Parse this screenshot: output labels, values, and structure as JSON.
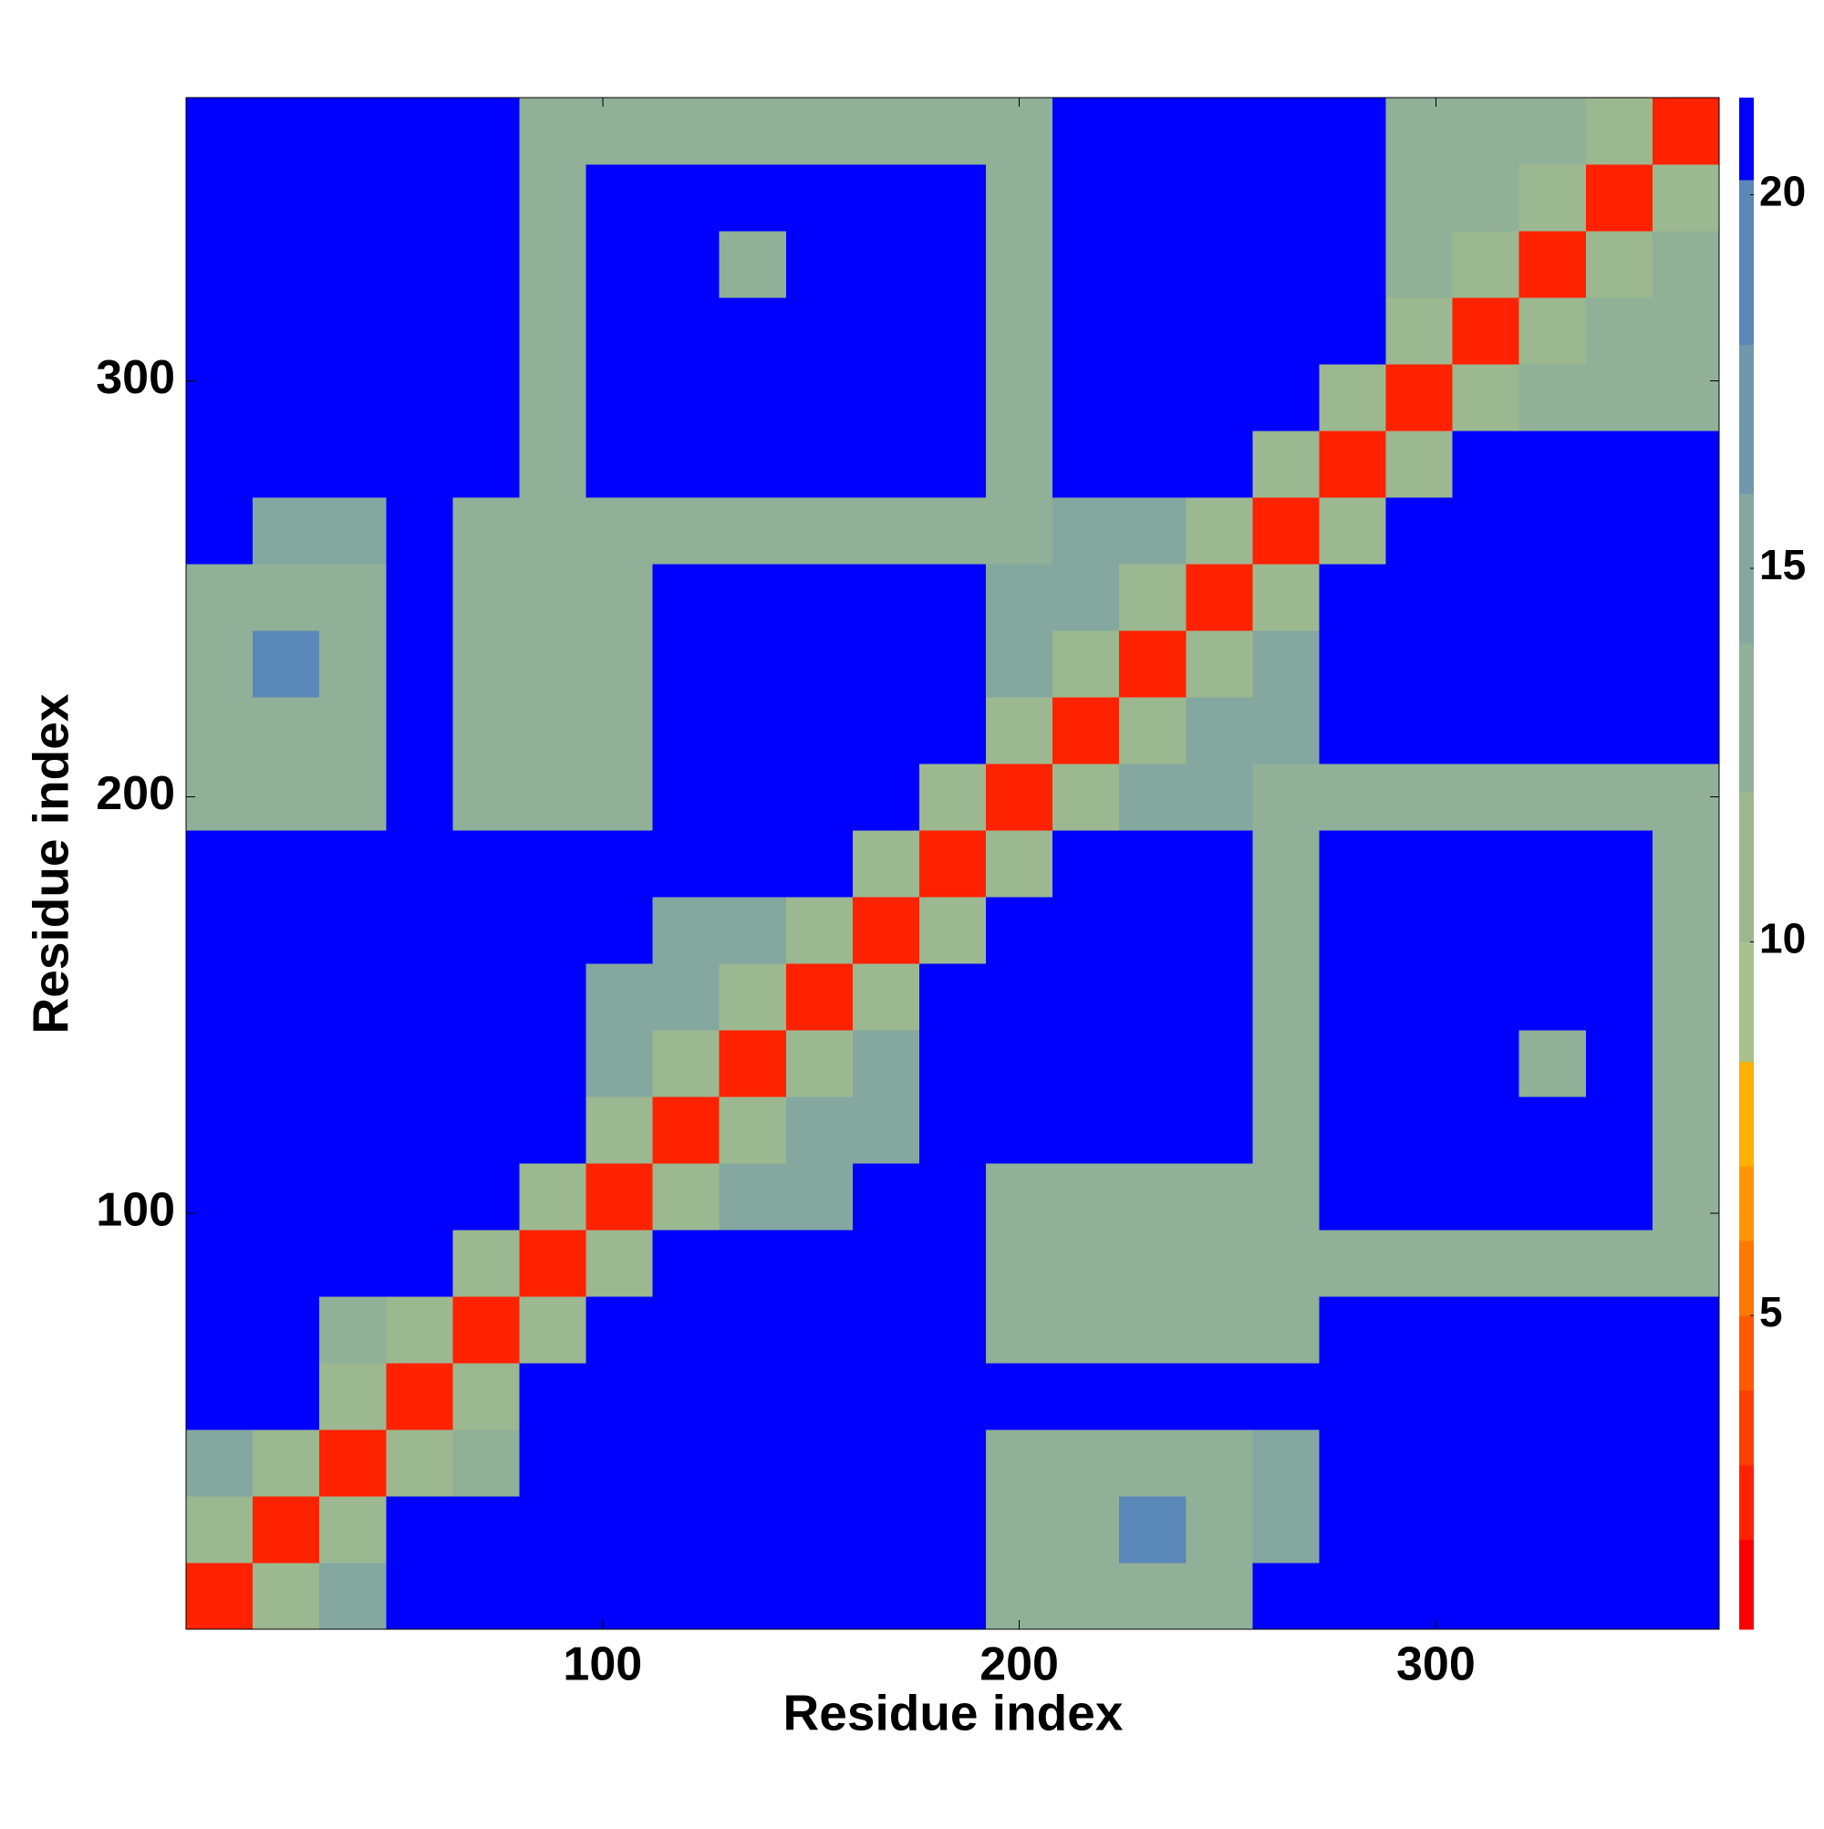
{
  "chart_data": {
    "type": "heatmap",
    "x_label": "Residue index",
    "y_label": "Residue index",
    "x_edges": [
      0,
      16,
      32,
      48,
      64,
      80,
      96,
      112,
      128,
      144,
      160,
      176,
      192,
      208,
      224,
      240,
      256,
      272,
      288,
      304,
      320,
      336,
      352,
      368
    ],
    "y_edges": [
      0,
      16,
      32,
      48,
      64,
      80,
      96,
      112,
      128,
      144,
      160,
      176,
      192,
      208,
      224,
      240,
      256,
      272,
      288,
      304,
      320,
      336,
      352,
      368
    ],
    "values": [
      [
        2,
        11,
        14,
        21,
        21,
        21,
        21,
        21,
        21,
        21,
        21,
        21,
        12,
        12,
        12,
        12,
        21,
        21,
        21,
        21,
        21,
        21,
        21
      ],
      [
        11,
        2,
        11,
        21,
        21,
        21,
        21,
        21,
        21,
        21,
        21,
        21,
        12,
        12,
        18,
        12,
        14,
        21,
        21,
        21,
        21,
        21,
        21
      ],
      [
        14,
        11,
        2,
        11,
        13,
        21,
        21,
        21,
        21,
        21,
        21,
        21,
        12,
        12,
        12,
        12,
        14,
        21,
        21,
        21,
        21,
        21,
        21
      ],
      [
        21,
        21,
        11,
        2,
        11,
        21,
        21,
        21,
        21,
        21,
        21,
        21,
        21,
        21,
        21,
        21,
        21,
        21,
        21,
        21,
        21,
        21,
        21
      ],
      [
        21,
        21,
        13,
        11,
        2,
        11,
        21,
        21,
        21,
        21,
        21,
        21,
        13,
        13,
        13,
        13,
        13,
        21,
        21,
        21,
        21,
        21,
        21
      ],
      [
        21,
        21,
        21,
        21,
        11,
        2,
        11,
        21,
        21,
        21,
        21,
        21,
        13,
        13,
        13,
        13,
        13,
        13,
        13,
        13,
        13,
        13,
        13
      ],
      [
        21,
        21,
        21,
        21,
        21,
        11,
        2,
        11,
        14,
        14,
        21,
        21,
        13,
        13,
        13,
        13,
        13,
        21,
        21,
        21,
        21,
        21,
        13
      ],
      [
        21,
        21,
        21,
        21,
        21,
        21,
        11,
        2,
        11,
        14,
        14,
        21,
        21,
        21,
        21,
        21,
        13,
        21,
        21,
        21,
        21,
        21,
        13
      ],
      [
        21,
        21,
        21,
        21,
        21,
        21,
        14,
        11,
        2,
        11,
        14,
        21,
        21,
        21,
        21,
        21,
        13,
        21,
        21,
        21,
        12,
        21,
        13
      ],
      [
        21,
        21,
        21,
        21,
        21,
        21,
        14,
        14,
        11,
        2,
        11,
        21,
        21,
        21,
        21,
        21,
        13,
        21,
        21,
        21,
        21,
        21,
        13
      ],
      [
        21,
        21,
        21,
        21,
        21,
        21,
        21,
        14,
        14,
        11,
        2,
        11,
        21,
        21,
        21,
        21,
        13,
        21,
        21,
        21,
        21,
        21,
        13
      ],
      [
        21,
        21,
        21,
        21,
        21,
        21,
        21,
        21,
        21,
        21,
        11,
        2,
        11,
        21,
        21,
        21,
        13,
        21,
        21,
        21,
        21,
        21,
        13
      ],
      [
        12,
        12,
        12,
        21,
        13,
        13,
        13,
        21,
        21,
        21,
        21,
        11,
        2,
        11,
        14,
        14,
        13,
        13,
        13,
        13,
        13,
        13,
        13
      ],
      [
        12,
        12,
        12,
        21,
        13,
        13,
        13,
        21,
        21,
        21,
        21,
        21,
        11,
        2,
        11,
        14,
        14,
        21,
        21,
        21,
        21,
        21,
        21
      ],
      [
        12,
        18,
        12,
        21,
        13,
        13,
        13,
        21,
        21,
        21,
        21,
        21,
        14,
        11,
        2,
        11,
        14,
        21,
        21,
        21,
        21,
        21,
        21
      ],
      [
        12,
        12,
        12,
        21,
        13,
        13,
        13,
        21,
        21,
        21,
        21,
        21,
        14,
        14,
        11,
        2,
        11,
        21,
        21,
        21,
        21,
        21,
        21
      ],
      [
        21,
        14,
        14,
        21,
        13,
        13,
        13,
        13,
        13,
        13,
        13,
        13,
        13,
        14,
        14,
        11,
        2,
        11,
        21,
        21,
        21,
        21,
        21
      ],
      [
        21,
        21,
        21,
        21,
        21,
        13,
        21,
        21,
        21,
        21,
        21,
        21,
        13,
        21,
        21,
        21,
        11,
        2,
        11,
        21,
        21,
        21,
        21
      ],
      [
        21,
        21,
        21,
        21,
        21,
        13,
        21,
        21,
        21,
        21,
        21,
        21,
        13,
        21,
        21,
        21,
        21,
        11,
        2,
        11,
        13,
        13,
        13
      ],
      [
        21,
        21,
        21,
        21,
        21,
        13,
        21,
        21,
        21,
        21,
        21,
        21,
        13,
        21,
        21,
        21,
        21,
        21,
        11,
        2,
        11,
        13,
        13
      ],
      [
        21,
        21,
        21,
        21,
        21,
        13,
        21,
        21,
        12,
        21,
        21,
        21,
        13,
        21,
        21,
        21,
        21,
        21,
        13,
        11,
        2,
        11,
        13
      ],
      [
        21,
        21,
        21,
        21,
        21,
        13,
        21,
        21,
        21,
        21,
        21,
        21,
        13,
        21,
        21,
        21,
        21,
        21,
        13,
        13,
        11,
        2,
        11
      ],
      [
        21,
        21,
        21,
        21,
        21,
        13,
        13,
        13,
        13,
        13,
        13,
        13,
        13,
        21,
        21,
        21,
        21,
        21,
        13,
        13,
        13,
        11,
        2
      ]
    ],
    "xlim": [
      0,
      368
    ],
    "ylim": [
      0,
      368
    ],
    "xticks": [
      100,
      200,
      300
    ],
    "yticks": [
      100,
      200,
      300
    ],
    "colorbar": {
      "boundaries": [
        0.8,
        2,
        3,
        4,
        5,
        6,
        7,
        8.4,
        10,
        12,
        14,
        16,
        18,
        20.2,
        21.3
      ],
      "colors": [
        "#ff0000",
        "#ff2200",
        "#ff4000",
        "#ff5a00",
        "#ff7800",
        "#ff9600",
        "#ffb000",
        "#a8c08a",
        "#9cb890",
        "#90b098",
        "#84a8a0",
        "#6f98ab",
        "#5a88b8",
        "#0000ff"
      ],
      "lim": [
        0.8,
        21.3
      ],
      "ticks": [
        5,
        10,
        15,
        20
      ]
    }
  }
}
